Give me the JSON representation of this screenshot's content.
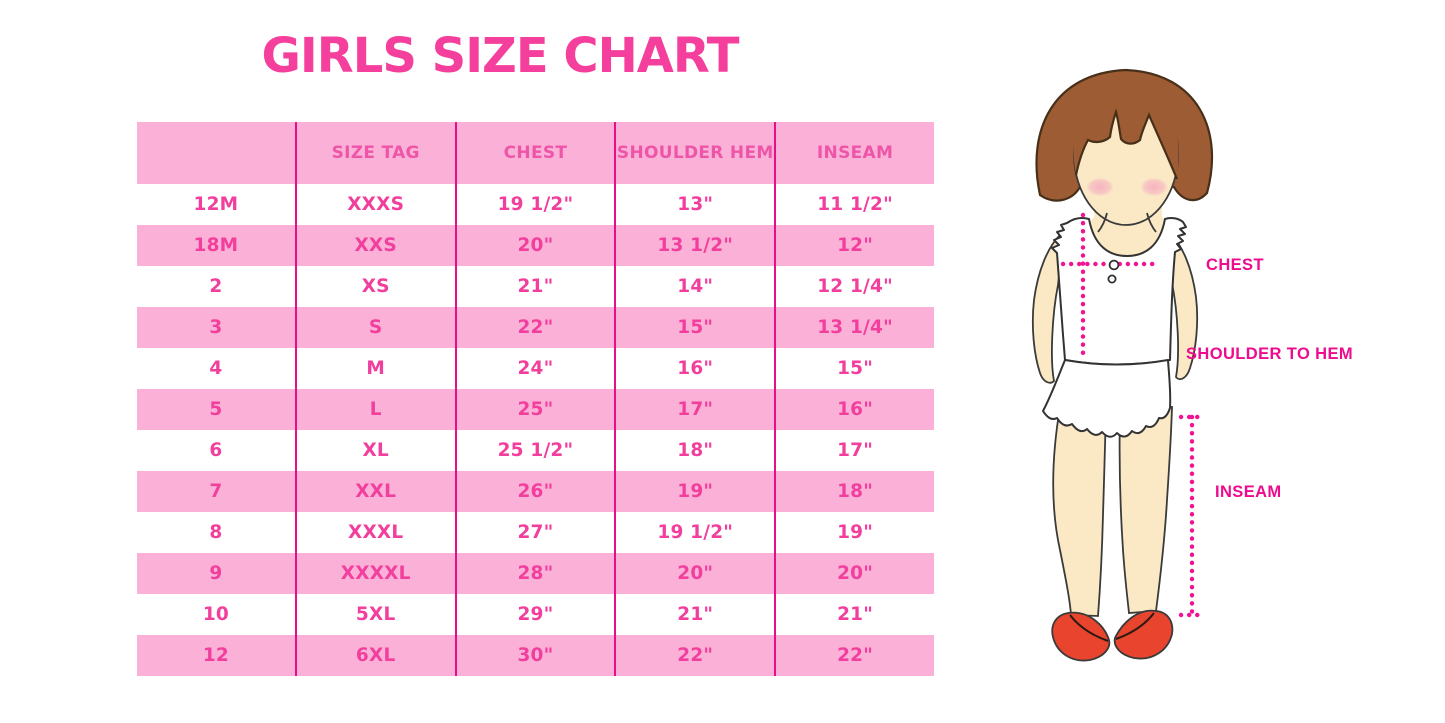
{
  "title": {
    "text": "GIRLS SIZE CHART"
  },
  "colors": {
    "title_pink": "#f53f9d",
    "row_pink": "#fbb1d7",
    "header_text": "#ee55a8",
    "cell_text": "#f23e9c",
    "grid_line": "#e70f85",
    "label_magenta": "#ed0b8e",
    "dot_pink": "#f01292",
    "hair_brown": "#9d5c33",
    "skin": "#fbe9c6",
    "shoe_red": "#e9452e"
  },
  "table": {
    "columns": [
      "",
      "SIZE TAG",
      "CHEST",
      "SHOULDER HEM",
      "INSEAM"
    ],
    "rows": [
      [
        "12M",
        "XXXS",
        "19 1/2\"",
        "13\"",
        "11 1/2\""
      ],
      [
        "18M",
        "XXS",
        "20\"",
        "13 1/2\"",
        "12\""
      ],
      [
        "2",
        "XS",
        "21\"",
        "14\"",
        "12 1/4\""
      ],
      [
        "3",
        "S",
        "22\"",
        "15\"",
        "13 1/4\""
      ],
      [
        "4",
        "M",
        "24\"",
        "16\"",
        "15\""
      ],
      [
        "5",
        "L",
        "25\"",
        "17\"",
        "16\""
      ],
      [
        "6",
        "XL",
        "25 1/2\"",
        "18\"",
        "17\""
      ],
      [
        "7",
        "XXL",
        "26\"",
        "19\"",
        "18\""
      ],
      [
        "8",
        "XXXL",
        "27\"",
        "19 1/2\"",
        "19\""
      ],
      [
        "9",
        "XXXXL",
        "28\"",
        "20\"",
        "20\""
      ],
      [
        "10",
        "5XL",
        "29\"",
        "21\"",
        "21\""
      ],
      [
        "12",
        "6XL",
        "30\"",
        "22\"",
        "22\""
      ]
    ]
  },
  "figure": {
    "labels": {
      "chest": "CHEST",
      "shoulder_to_hem": "SHOULDER TO HEM",
      "inseam": "INSEAM"
    }
  }
}
